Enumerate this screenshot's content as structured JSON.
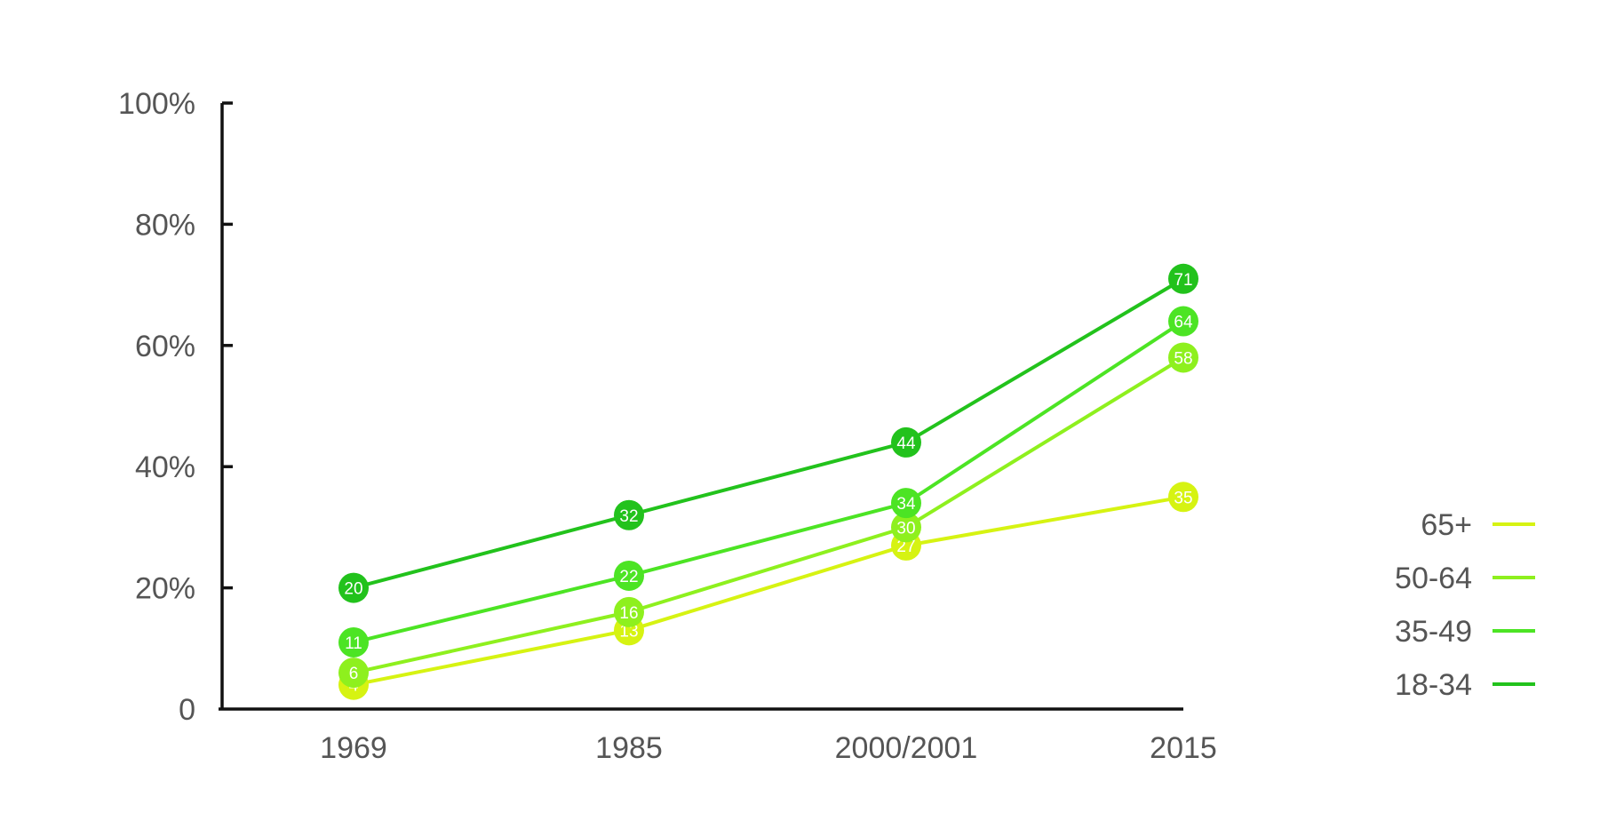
{
  "chart_data": {
    "type": "line",
    "title": "",
    "xlabel": "",
    "ylabel": "",
    "categories": [
      "1969",
      "1985",
      "2000/2001",
      "2015"
    ],
    "ylim": [
      0,
      100
    ],
    "y_ticks": [
      {
        "value": 0,
        "label": "0"
      },
      {
        "value": 20,
        "label": "20%"
      },
      {
        "value": 40,
        "label": "40%"
      },
      {
        "value": 60,
        "label": "60%"
      },
      {
        "value": 80,
        "label": "80%"
      },
      {
        "value": 100,
        "label": "100%"
      }
    ],
    "grid": false,
    "legend_position": "right",
    "series": [
      {
        "name": "65+",
        "values": [
          4,
          13,
          27,
          35
        ],
        "labels": [
          "4",
          "13",
          "27",
          "35"
        ],
        "color": "#d6f312"
      },
      {
        "name": "50-64",
        "values": [
          6,
          16,
          30,
          58
        ],
        "labels": [
          "6",
          "16",
          "30",
          "58"
        ],
        "color": "#8ef01e"
      },
      {
        "name": "35-49",
        "values": [
          11,
          22,
          34,
          64
        ],
        "labels": [
          "11",
          "22",
          "34",
          "64"
        ],
        "color": "#4ce424"
      },
      {
        "name": "18-34",
        "values": [
          20,
          32,
          44,
          71
        ],
        "labels": [
          "20",
          "32",
          "44",
          "71"
        ],
        "color": "#22c21c"
      }
    ]
  }
}
